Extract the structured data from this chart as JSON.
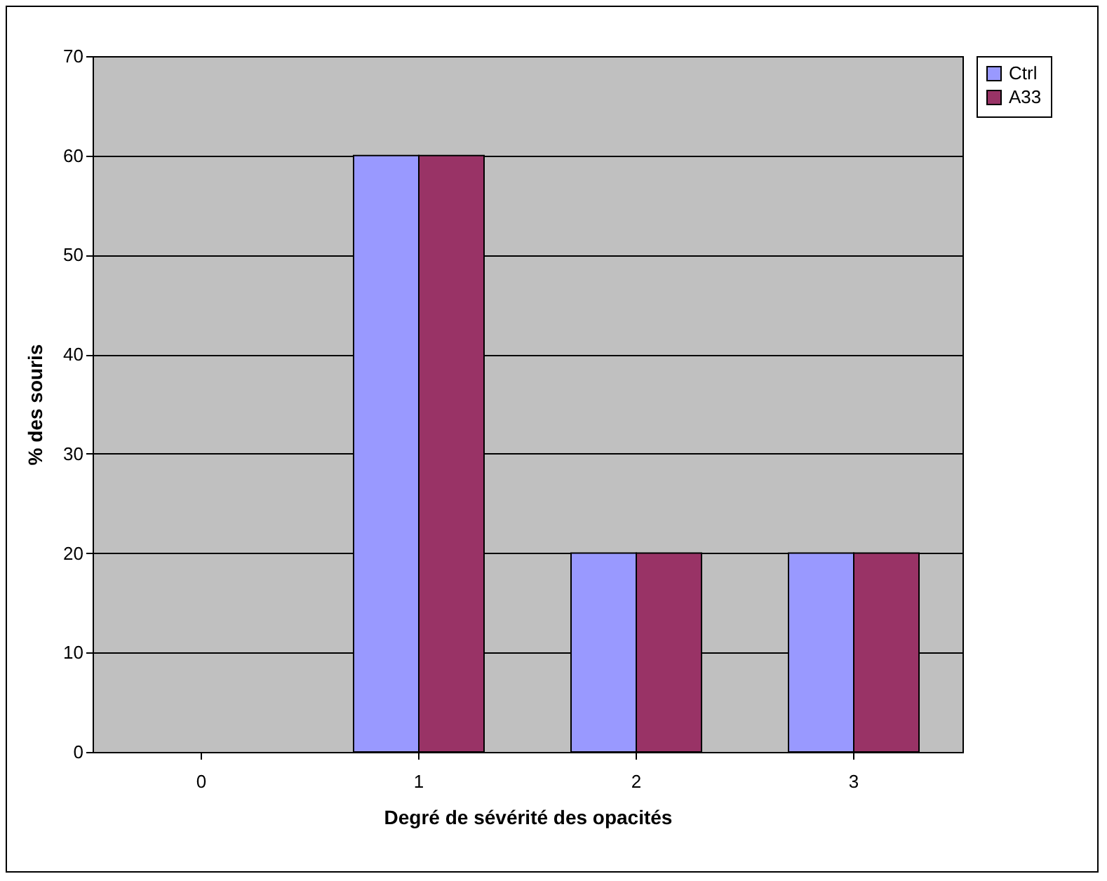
{
  "chart_data": {
    "type": "bar",
    "xlabel": "Degré de sévérité des opacités",
    "ylabel": "% des souris",
    "categories": [
      "0",
      "1",
      "2",
      "3"
    ],
    "series": [
      {
        "name": "Ctrl",
        "color": "#9999ff",
        "values": [
          0,
          60,
          20,
          20
        ]
      },
      {
        "name": "A33",
        "color": "#993366",
        "values": [
          0,
          60,
          20,
          20
        ]
      }
    ],
    "ylim": [
      0,
      70
    ],
    "yticks": [
      0,
      10,
      20,
      30,
      40,
      50,
      60,
      70
    ],
    "grid": "y",
    "legend": "right"
  }
}
